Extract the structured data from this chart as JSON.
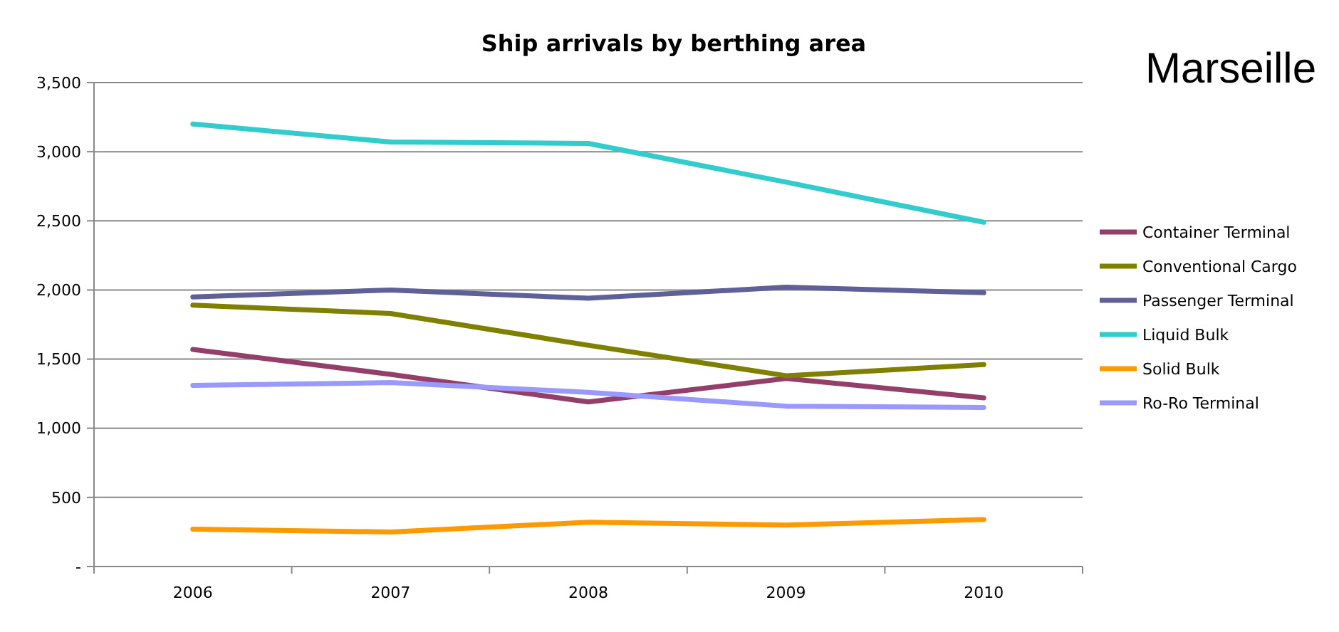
{
  "chart_data": {
    "type": "line",
    "title": "Ship arrivals by berthing area",
    "subtitle": "Marseille",
    "categories": [
      "2006",
      "2007",
      "2008",
      "2009",
      "2010"
    ],
    "series": [
      {
        "name": "Container Terminal",
        "color": "#943f6a",
        "values": [
          1570,
          1390,
          1190,
          1360,
          1220
        ]
      },
      {
        "name": "Conventional Cargo",
        "color": "#808000",
        "values": [
          1890,
          1830,
          1600,
          1380,
          1460
        ]
      },
      {
        "name": "Passenger Terminal",
        "color": "#5f5f9a",
        "values": [
          1950,
          2000,
          1940,
          2020,
          1980
        ]
      },
      {
        "name": "Liquid Bulk",
        "color": "#33cccc",
        "values": [
          3200,
          3070,
          3060,
          2780,
          2490
        ]
      },
      {
        "name": "Solid Bulk",
        "color": "#ff9900",
        "values": [
          270,
          250,
          320,
          300,
          340
        ]
      },
      {
        "name": "Ro-Ro Terminal",
        "color": "#9999ff",
        "values": [
          1310,
          1330,
          1260,
          1160,
          1150
        ]
      }
    ],
    "ylim": [
      0,
      3500
    ],
    "yticks": [
      {
        "value": 0,
        "label": "-"
      },
      {
        "value": 500,
        "label": "500"
      },
      {
        "value": 1000,
        "label": "1,000"
      },
      {
        "value": 1500,
        "label": "1,500"
      },
      {
        "value": 2000,
        "label": "2,000"
      },
      {
        "value": 2500,
        "label": "2,500"
      },
      {
        "value": 3000,
        "label": "3,000"
      },
      {
        "value": 3500,
        "label": "3,500"
      }
    ],
    "grid": "y",
    "legend": "right",
    "marker": "none",
    "line_style": "solid"
  }
}
